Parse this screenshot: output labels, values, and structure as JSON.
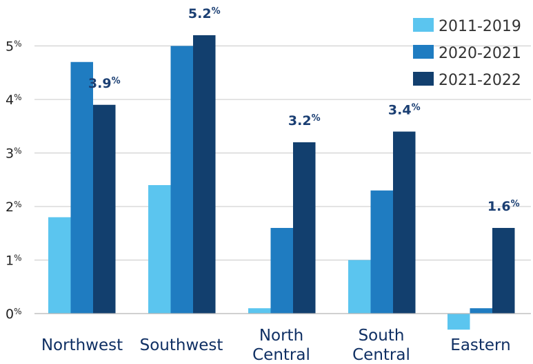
{
  "chart_data": {
    "type": "bar",
    "categories": [
      "Northwest",
      "Southwest",
      "North Central",
      "South Central",
      "Eastern"
    ],
    "category_lines": [
      [
        "Northwest"
      ],
      [
        "Southwest"
      ],
      [
        "North",
        "Central"
      ],
      [
        "South",
        "Central"
      ],
      [
        "Eastern"
      ]
    ],
    "series": [
      {
        "name": "2011-2019",
        "color": "#5bc5ef",
        "values": [
          1.8,
          2.4,
          0.1,
          1.0,
          -0.3
        ]
      },
      {
        "name": "2020-2021",
        "color": "#1f7cc1",
        "values": [
          4.7,
          5.0,
          1.6,
          2.3,
          0.1
        ]
      },
      {
        "name": "2021-2022",
        "color": "#123f6e",
        "values": [
          3.9,
          5.2,
          3.2,
          3.4,
          1.6
        ]
      }
    ],
    "data_labels": [
      {
        "category_index": 0,
        "series_index": 2,
        "number": "3.9",
        "suffix": "%"
      },
      {
        "category_index": 1,
        "series_index": 2,
        "number": "5.2",
        "suffix": "%"
      },
      {
        "category_index": 2,
        "series_index": 2,
        "number": "3.2",
        "suffix": "%"
      },
      {
        "category_index": 3,
        "series_index": 2,
        "number": "3.4",
        "suffix": "%"
      },
      {
        "category_index": 4,
        "series_index": 2,
        "number": "1.6",
        "suffix": "%"
      }
    ],
    "y_ticks": [
      0,
      1,
      2,
      3,
      4,
      5
    ],
    "y_tick_suffix": "%",
    "ylim": [
      -0.35,
      5.6
    ],
    "grid": true,
    "legend_position": "top-right",
    "title": "",
    "xlabel": "",
    "ylabel": ""
  }
}
